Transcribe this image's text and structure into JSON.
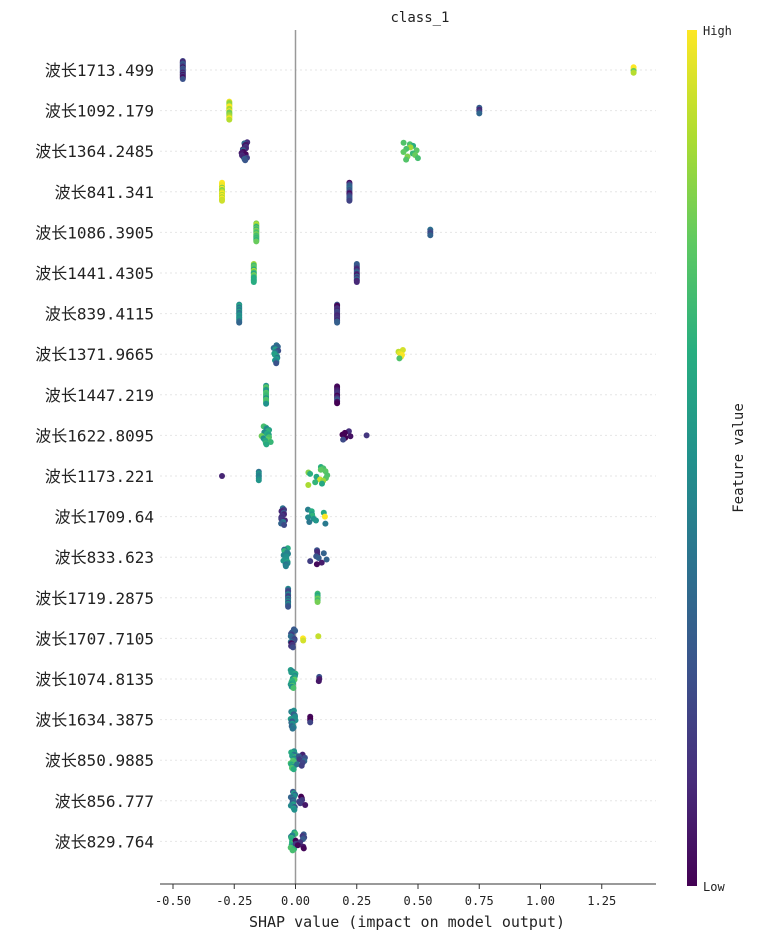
{
  "chart_data": {
    "type": "scatter",
    "subtype": "shap-beeswarm",
    "title": "class_1",
    "xlabel": "SHAP value (impact on model output)",
    "xlim": [
      -0.55,
      1.47
    ],
    "xticks": [
      -0.5,
      -0.25,
      0.0,
      0.25,
      0.5,
      0.75,
      1.0,
      1.25
    ],
    "xtick_labels": [
      "-0.50",
      "-0.25",
      "0.00",
      "0.25",
      "0.50",
      "0.75",
      "1.00",
      "1.25"
    ],
    "colorbar": {
      "label": "Feature value",
      "high": "High",
      "low": "Low",
      "colormap": "viridis"
    },
    "features": [
      {
        "name": "波长1713.499",
        "clusters": [
          {
            "center": -0.46,
            "spread": 0.0,
            "n": 18,
            "value": 0.15
          },
          {
            "center": 1.38,
            "spread": 0.0,
            "n": 4,
            "value": 0.9
          }
        ]
      },
      {
        "name": "波长1092.179",
        "clusters": [
          {
            "center": -0.27,
            "spread": 0.0,
            "n": 16,
            "value": 0.9
          },
          {
            "center": 0.75,
            "spread": 0.0,
            "n": 4,
            "value": 0.2
          }
        ]
      },
      {
        "name": "波长1364.2485",
        "clusters": [
          {
            "center": -0.21,
            "spread": 0.02,
            "n": 16,
            "value": 0.2
          },
          {
            "center": 0.47,
            "spread": 0.03,
            "n": 12,
            "value": 0.7
          }
        ]
      },
      {
        "name": "波长841.341",
        "clusters": [
          {
            "center": -0.3,
            "spread": 0.0,
            "n": 16,
            "value": 0.95
          },
          {
            "center": 0.22,
            "spread": 0.0,
            "n": 16,
            "value": 0.2
          }
        ]
      },
      {
        "name": "波长1086.3905",
        "clusters": [
          {
            "center": -0.16,
            "spread": 0.0,
            "n": 16,
            "value": 0.75
          },
          {
            "center": 0.55,
            "spread": 0.0,
            "n": 4,
            "value": 0.2
          }
        ]
      },
      {
        "name": "波长1441.4305",
        "clusters": [
          {
            "center": -0.17,
            "spread": 0.0,
            "n": 14,
            "value": 0.75
          },
          {
            "center": 0.25,
            "spread": 0.0,
            "n": 14,
            "value": 0.2
          }
        ]
      },
      {
        "name": "波长839.4115",
        "clusters": [
          {
            "center": -0.23,
            "spread": 0.0,
            "n": 14,
            "value": 0.45
          },
          {
            "center": 0.17,
            "spread": 0.0,
            "n": 16,
            "value": 0.15
          }
        ]
      },
      {
        "name": "波长1371.9665",
        "clusters": [
          {
            "center": -0.08,
            "spread": 0.01,
            "n": 14,
            "value": 0.4
          },
          {
            "center": 0.43,
            "spread": 0.01,
            "n": 6,
            "value": 0.85
          }
        ]
      },
      {
        "name": "波长1447.219",
        "clusters": [
          {
            "center": -0.12,
            "spread": 0.0,
            "n": 14,
            "value": 0.6
          },
          {
            "center": 0.17,
            "spread": 0.0,
            "n": 12,
            "value": 0.15
          }
        ]
      },
      {
        "name": "波长1622.8095",
        "clusters": [
          {
            "center": -0.12,
            "spread": 0.02,
            "n": 16,
            "value": 0.6
          },
          {
            "center": 0.21,
            "spread": 0.02,
            "n": 6,
            "value": 0.05
          },
          {
            "center": 0.29,
            "spread": 0.0,
            "n": 1,
            "value": 0.05
          }
        ]
      },
      {
        "name": "波长1173.221",
        "clusters": [
          {
            "center": -0.15,
            "spread": 0.0,
            "n": 6,
            "value": 0.35
          },
          {
            "center": -0.3,
            "spread": 0.0,
            "n": 1,
            "value": 0.05
          },
          {
            "center": 0.09,
            "spread": 0.04,
            "n": 14,
            "value": 0.75
          }
        ]
      },
      {
        "name": "波长1709.64",
        "clusters": [
          {
            "center": -0.05,
            "spread": 0.01,
            "n": 12,
            "value": 0.25
          },
          {
            "center": 0.09,
            "spread": 0.04,
            "n": 10,
            "value": 0.55
          },
          {
            "center": 0.12,
            "spread": 0.0,
            "n": 1,
            "value": 1.0
          }
        ]
      },
      {
        "name": "波长833.623",
        "clusters": [
          {
            "center": -0.04,
            "spread": 0.01,
            "n": 14,
            "value": 0.5
          },
          {
            "center": 0.09,
            "spread": 0.04,
            "n": 10,
            "value": 0.15
          }
        ]
      },
      {
        "name": "波长1719.2875",
        "clusters": [
          {
            "center": -0.03,
            "spread": 0.0,
            "n": 14,
            "value": 0.35
          },
          {
            "center": 0.09,
            "spread": 0.0,
            "n": 6,
            "value": 0.7
          }
        ]
      },
      {
        "name": "波长1707.7105",
        "clusters": [
          {
            "center": -0.01,
            "spread": 0.01,
            "n": 14,
            "value": 0.2
          },
          {
            "center": 0.07,
            "spread": 0.04,
            "n": 3,
            "value": 0.9
          }
        ]
      },
      {
        "name": "波长1074.8135",
        "clusters": [
          {
            "center": -0.01,
            "spread": 0.01,
            "n": 16,
            "value": 0.6
          },
          {
            "center": 0.07,
            "spread": 0.04,
            "n": 3,
            "value": 0.2
          }
        ]
      },
      {
        "name": "波长1634.3875",
        "clusters": [
          {
            "center": -0.01,
            "spread": 0.01,
            "n": 16,
            "value": 0.4
          },
          {
            "center": 0.06,
            "spread": 0.0,
            "n": 4,
            "value": 0.05
          }
        ]
      },
      {
        "name": "波长850.9885",
        "clusters": [
          {
            "center": -0.01,
            "spread": 0.01,
            "n": 16,
            "value": 0.55
          },
          {
            "center": 0.02,
            "spread": 0.02,
            "n": 8,
            "value": 0.2
          }
        ]
      },
      {
        "name": "波长856.777",
        "clusters": [
          {
            "center": -0.01,
            "spread": 0.01,
            "n": 14,
            "value": 0.4
          },
          {
            "center": 0.03,
            "spread": 0.02,
            "n": 6,
            "value": 0.05
          }
        ]
      },
      {
        "name": "波长829.764",
        "clusters": [
          {
            "center": -0.01,
            "spread": 0.01,
            "n": 14,
            "value": 0.55
          },
          {
            "center": 0.02,
            "spread": 0.02,
            "n": 10,
            "value": 0.15
          }
        ]
      }
    ]
  }
}
